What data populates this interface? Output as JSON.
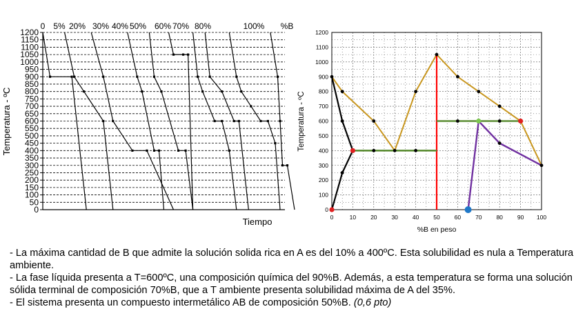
{
  "left_chart": {
    "y_title": "Temperatura - ºC",
    "x_title": "Tiempo",
    "y_ticks": [
      "0",
      "50",
      "100",
      "150",
      "200",
      "250",
      "300",
      "350",
      "400",
      "450",
      "500",
      "550",
      "600",
      "650",
      "700",
      "750",
      "800",
      "850",
      "900",
      "950",
      "1000",
      "1050",
      "1100",
      "1150",
      "1200"
    ],
    "top_labels": [
      "0",
      "5%",
      "20%",
      "30%",
      "40%",
      "50%",
      "60%",
      "70%",
      "80%",
      "100%",
      "%B"
    ]
  },
  "right_chart": {
    "y_title": "Temperatura - ºC",
    "x_title": "%B en peso",
    "x_ticks": [
      "0",
      "10",
      "20",
      "30",
      "40",
      "50",
      "60",
      "70",
      "80",
      "90",
      "100"
    ],
    "y_ticks": [
      "0",
      "100",
      "200",
      "300",
      "400",
      "500",
      "600",
      "700",
      "800",
      "900",
      "1000",
      "1100",
      "1200"
    ]
  },
  "colors": {
    "liquidus": "#c8961e",
    "solvus": "#000000",
    "compound_line": "#ff0000",
    "isotherm": "#5a8c32",
    "purple_line": "#7030a0",
    "red_dot": "#e02020",
    "blue_dot": "#1f78c8",
    "green_dot": "#7dc850"
  },
  "chart_data": [
    {
      "type": "line",
      "title": "",
      "xlabel": "Tiempo",
      "ylabel": "Temperatura - ºC",
      "ylim": [
        0,
        1200
      ],
      "grid": "dashed horizontal",
      "series": [
        {
          "name": "0",
          "points": [
            [
              0,
              1200
            ],
            [
              3,
              900
            ],
            [
              12,
              900
            ],
            [
              18,
              0
            ]
          ]
        },
        {
          "name": "5%",
          "points": [
            [
              9,
              1200
            ],
            [
              13,
              900
            ],
            [
              17,
              800
            ],
            [
              25,
              600
            ],
            [
              29,
              0
            ]
          ]
        },
        {
          "name": "20%",
          "points": [
            [
              20,
              1200
            ],
            [
              25,
              900
            ],
            [
              29,
              600
            ],
            [
              37,
              400
            ],
            [
              43,
              400
            ],
            [
              54,
              0
            ]
          ]
        },
        {
          "name": "30%",
          "points": [
            [
              35,
              1200
            ],
            [
              39,
              900
            ],
            [
              41,
              800
            ],
            [
              46,
              400
            ],
            [
              48,
              400
            ],
            [
              50,
              0
            ]
          ]
        },
        {
          "name": "40%",
          "points": [
            [
              44,
              1200
            ],
            [
              46,
              900
            ],
            [
              49,
              800
            ],
            [
              56,
              400
            ],
            [
              59,
              400
            ],
            [
              62,
              0
            ]
          ]
        },
        {
          "name": "50%",
          "points": [
            [
              52,
              1200
            ],
            [
              54,
              1050
            ],
            [
              58,
              1050
            ],
            [
              60,
              1050
            ],
            [
              62,
              0
            ]
          ]
        },
        {
          "name": "60%",
          "points": [
            [
              62,
              1200
            ],
            [
              64,
              900
            ],
            [
              66,
              800
            ],
            [
              71,
              600
            ],
            [
              74,
              600
            ],
            [
              77,
              400
            ],
            [
              80,
              0
            ]
          ]
        },
        {
          "name": "70%",
          "points": [
            [
              67,
              1200
            ],
            [
              69,
              900
            ],
            [
              74,
              800
            ],
            [
              79,
              600
            ],
            [
              81,
              600
            ],
            [
              85,
              0
            ]
          ]
        },
        {
          "name": "80%",
          "points": [
            [
              77,
              1200
            ],
            [
              80,
              900
            ],
            [
              82,
              800
            ],
            [
              86,
              700
            ],
            [
              90,
              600
            ],
            [
              93,
              600
            ],
            [
              96,
              450
            ],
            [
              98,
              0
            ]
          ]
        },
        {
          "name": "100%",
          "points": [
            [
              94,
              1200
            ],
            [
              97,
              900
            ],
            [
              98,
              600
            ],
            [
              99,
              300
            ],
            [
              101,
              300
            ],
            [
              104,
              0
            ]
          ]
        }
      ]
    },
    {
      "type": "line",
      "title": "",
      "xlabel": "%B en peso",
      "ylabel": "Temperatura - ºC",
      "xlim": [
        0,
        100
      ],
      "ylim": [
        0,
        1200
      ],
      "grid": "dotted",
      "series": [
        {
          "name": "",
          "color_key": "liquidus",
          "points": [
            [
              0,
              900
            ],
            [
              5,
              800
            ],
            [
              20,
              600
            ],
            [
              30,
              400
            ],
            [
              40,
              800
            ],
            [
              50,
              1050
            ],
            [
              60,
              900
            ],
            [
              70,
              800
            ],
            [
              80,
              700
            ],
            [
              90,
              600
            ],
            [
              100,
              300
            ]
          ]
        },
        {
          "name": "",
          "color_key": "solvus",
          "points": [
            [
              0,
              900
            ],
            [
              5,
              600
            ],
            [
              10,
              400
            ],
            [
              5,
              250
            ],
            [
              0,
              0
            ]
          ]
        },
        {
          "name": "",
          "color_key": "compound_line",
          "points": [
            [
              50,
              0
            ],
            [
              50,
              1050
            ]
          ]
        },
        {
          "name": "",
          "color_key": "isotherm",
          "points": [
            [
              10,
              400
            ],
            [
              50,
              400
            ]
          ]
        },
        {
          "name": "",
          "color_key": "isotherm",
          "points": [
            [
              50,
              600
            ],
            [
              90,
              600
            ]
          ]
        },
        {
          "name": "",
          "color_key": "purple_line",
          "points": [
            [
              65,
              0
            ],
            [
              70,
              600
            ],
            [
              80,
              450
            ],
            [
              100,
              300
            ]
          ]
        }
      ],
      "markers": [
        {
          "x": 0,
          "y": 0,
          "color_key": "red_dot"
        },
        {
          "x": 65,
          "y": 0,
          "color_key": "blue_dot"
        },
        {
          "x": 70,
          "y": 600,
          "color_key": "green_dot"
        },
        {
          "x": 90,
          "y": 600,
          "color_key": "red_dot"
        },
        {
          "x": 10,
          "y": 400,
          "color_key": "red_dot"
        }
      ],
      "black_points": [
        [
          0,
          900
        ],
        [
          5,
          800
        ],
        [
          5,
          600
        ],
        [
          5,
          250
        ],
        [
          20,
          600
        ],
        [
          20,
          400
        ],
        [
          30,
          400
        ],
        [
          40,
          400
        ],
        [
          40,
          800
        ],
        [
          50,
          1050
        ],
        [
          60,
          900
        ],
        [
          60,
          600
        ],
        [
          70,
          800
        ],
        [
          80,
          700
        ],
        [
          80,
          600
        ],
        [
          80,
          450
        ],
        [
          90,
          600
        ],
        [
          100,
          300
        ]
      ]
    }
  ],
  "notes": [
    "- La máxima cantidad de B que admite la solución solida rica en A es del 10% a 400ºC. Esta solubilidad es nula a Temperatura ambiente.",
    "- La fase líquida presenta a T=600ºC, una composición química del 90%B. Además, a esta temperatura se forma una solución sólida terminal de composición 70%B, que a T ambiente presenta solubilidad máxima de A del 35%.",
    "- El sistema presenta un compuesto intermetálico AB de composición 50%B. "
  ],
  "score_note": "(0,6 pto)"
}
